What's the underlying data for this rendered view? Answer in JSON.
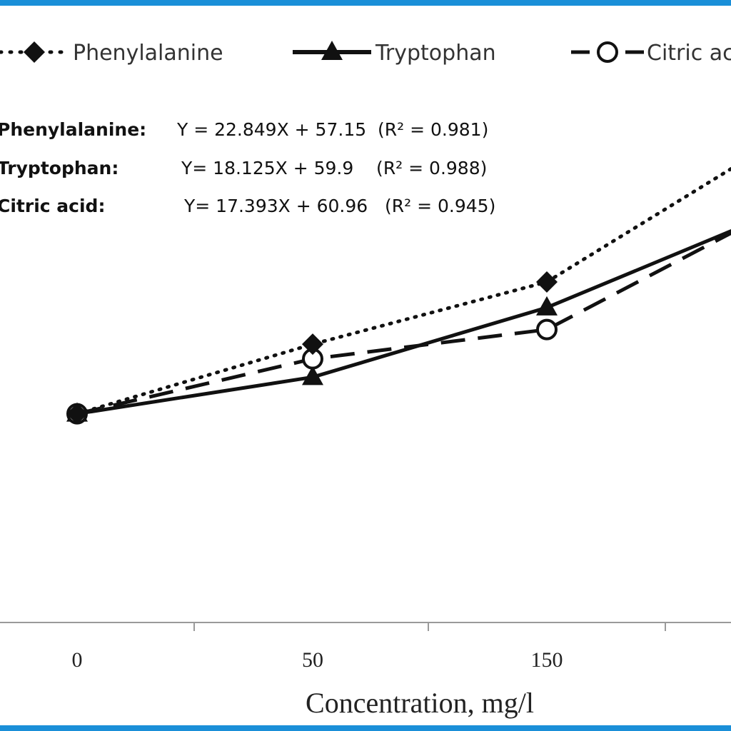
{
  "frame": {
    "color": "#1a8fd8"
  },
  "chart_data": {
    "type": "line",
    "xlabel": "Concentration, mg/l",
    "categories": [
      "0",
      "50",
      "150",
      ""
    ],
    "y_range": [
      0,
      170
    ],
    "grid": false,
    "legend_position": "top",
    "series": [
      {
        "name": "Phenylalanine",
        "values": [
          57,
          76,
          93,
          127
        ],
        "line_style": "dotted",
        "marker": "diamond-filled",
        "color": "#111111"
      },
      {
        "name": "Tryptophan",
        "values": [
          57,
          67,
          86,
          109
        ],
        "line_style": "solid",
        "marker": "triangle-filled",
        "color": "#111111"
      },
      {
        "name": "Citric acid",
        "values": [
          57,
          72,
          80,
          109
        ],
        "line_style": "dashed",
        "marker": "circle-open",
        "color": "#111111"
      }
    ],
    "equations": [
      {
        "name": "Phenylalanine:",
        "text": "Y = 22.849X + 57.15  (R² = 0.981)"
      },
      {
        "name": "Tryptophan:",
        "text": "Y= 18.125X + 59.9    (R² = 0.988)"
      },
      {
        "name": "Citric acid:",
        "text": "Y= 17.393X + 60.96   (R² = 0.945)"
      }
    ]
  }
}
